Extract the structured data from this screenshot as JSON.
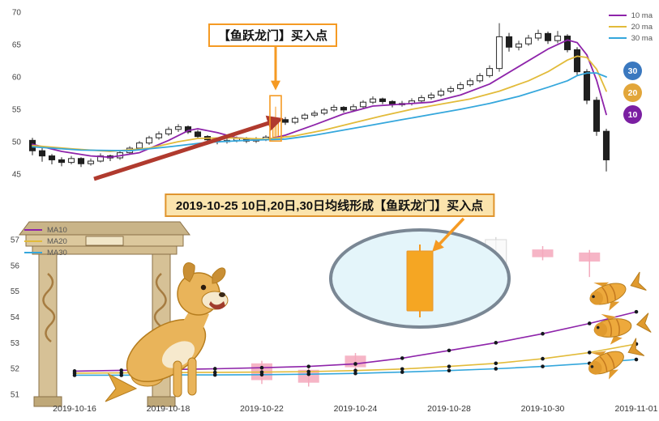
{
  "banner": {
    "text": "2019-10-25 10日,20日,30日均线形成【鱼跃龙门】买入点"
  },
  "top_chart": {
    "annotation": "【鱼跃龙门】买入点",
    "y_ticks": [
      45,
      50,
      55,
      60,
      65,
      70
    ],
    "badges": [
      {
        "label": "30",
        "color": "#3a78bf"
      },
      {
        "label": "20",
        "color": "#e2a63a"
      },
      {
        "label": "10",
        "color": "#7b1fa2"
      }
    ]
  },
  "bottom_chart": {
    "y_ticks": [
      51,
      52,
      53,
      54,
      55,
      56,
      57
    ]
  },
  "chart_data": [
    {
      "type": "candlestick",
      "title": "",
      "ylim": [
        44.5,
        70
      ],
      "y_ticks": [
        45,
        50,
        55,
        60,
        65,
        70
      ],
      "legend_position": "top-right",
      "annotation": "【鱼跃龙门】买入点",
      "buy_candle_index": 25,
      "candles": [
        [
          50.2,
          50.6,
          47.9,
          48.6
        ],
        [
          48.6,
          49.0,
          46.9,
          47.8
        ],
        [
          47.8,
          48.1,
          46.5,
          47.2
        ],
        [
          47.2,
          47.6,
          46.2,
          46.8
        ],
        [
          46.8,
          47.8,
          46.5,
          47.4
        ],
        [
          47.4,
          47.6,
          46.1,
          46.6
        ],
        [
          46.6,
          47.4,
          46.3,
          47.0
        ],
        [
          47.0,
          48.2,
          46.8,
          47.8
        ],
        [
          47.8,
          48.0,
          47.0,
          47.5
        ],
        [
          47.5,
          48.6,
          47.2,
          48.3
        ],
        [
          48.3,
          49.3,
          48.0,
          49.0
        ],
        [
          49.0,
          50.1,
          48.7,
          49.8
        ],
        [
          49.8,
          50.9,
          49.5,
          50.6
        ],
        [
          50.6,
          51.6,
          50.3,
          51.2
        ],
        [
          51.2,
          52.3,
          50.9,
          51.9
        ],
        [
          51.9,
          52.7,
          51.5,
          52.3
        ],
        [
          52.3,
          52.5,
          51.2,
          51.5
        ],
        [
          51.5,
          51.8,
          50.5,
          50.8
        ],
        [
          50.8,
          51.0,
          50.0,
          50.3
        ],
        [
          50.3,
          50.6,
          49.6,
          50.0
        ],
        [
          50.0,
          50.5,
          49.7,
          50.2
        ],
        [
          50.2,
          50.8,
          49.9,
          50.5
        ],
        [
          50.5,
          50.7,
          49.8,
          50.1
        ],
        [
          50.1,
          50.7,
          49.8,
          50.4
        ],
        [
          50.4,
          51.0,
          50.1,
          50.7
        ],
        [
          50.7,
          55.4,
          50.3,
          53.4
        ],
        [
          53.4,
          53.8,
          52.6,
          53.0
        ],
        [
          53.0,
          53.9,
          52.7,
          53.6
        ],
        [
          53.6,
          54.4,
          53.3,
          54.1
        ],
        [
          54.1,
          54.8,
          53.8,
          54.4
        ],
        [
          54.4,
          55.2,
          54.1,
          54.9
        ],
        [
          54.9,
          55.7,
          54.6,
          55.3
        ],
        [
          55.3,
          55.5,
          54.5,
          54.9
        ],
        [
          54.9,
          55.8,
          54.6,
          55.4
        ],
        [
          55.4,
          56.4,
          55.1,
          56.1
        ],
        [
          56.1,
          57.0,
          55.8,
          56.6
        ],
        [
          56.6,
          56.8,
          55.8,
          56.2
        ],
        [
          56.2,
          56.4,
          55.3,
          55.7
        ],
        [
          55.7,
          56.3,
          55.4,
          55.9
        ],
        [
          55.9,
          56.7,
          55.6,
          56.3
        ],
        [
          56.3,
          57.2,
          56.0,
          56.8
        ],
        [
          56.8,
          57.6,
          56.5,
          57.2
        ],
        [
          57.2,
          58.2,
          56.9,
          57.8
        ],
        [
          57.8,
          58.6,
          57.5,
          58.2
        ],
        [
          58.2,
          59.2,
          57.9,
          58.8
        ],
        [
          58.8,
          59.8,
          58.5,
          59.4
        ],
        [
          59.4,
          60.6,
          59.1,
          60.2
        ],
        [
          60.2,
          61.8,
          59.9,
          61.3
        ],
        [
          61.3,
          68.3,
          60.8,
          66.2
        ],
        [
          66.2,
          66.8,
          63.9,
          64.6
        ],
        [
          64.6,
          65.6,
          64.1,
          65.1
        ],
        [
          65.1,
          66.5,
          64.8,
          66.0
        ],
        [
          66.0,
          67.3,
          65.6,
          66.7
        ],
        [
          66.7,
          67.0,
          65.1,
          65.6
        ],
        [
          65.6,
          67.1,
          65.2,
          66.3
        ],
        [
          66.3,
          66.6,
          63.8,
          64.2
        ],
        [
          64.2,
          64.6,
          60.2,
          60.8
        ],
        [
          60.8,
          61.2,
          55.8,
          56.4
        ],
        [
          56.4,
          56.9,
          50.9,
          51.6
        ],
        [
          51.6,
          52.0,
          45.4,
          47.2
        ]
      ],
      "series": [
        {
          "name": "10 ma",
          "color": "#8e24aa",
          "points": [
            [
              0,
              49.6
            ],
            [
              3,
              48.5
            ],
            [
              6,
              47.8
            ],
            [
              8,
              47.6
            ],
            [
              11,
              48.3
            ],
            [
              14,
              50.2
            ],
            [
              16,
              51.7
            ],
            [
              17,
              52.0
            ],
            [
              19,
              51.4
            ],
            [
              21,
              50.6
            ],
            [
              24,
              50.3
            ],
            [
              26,
              51.0
            ],
            [
              29,
              52.6
            ],
            [
              32,
              54.3
            ],
            [
              35,
              55.5
            ],
            [
              38,
              55.8
            ],
            [
              41,
              56.1
            ],
            [
              44,
              57.2
            ],
            [
              47,
              58.9
            ],
            [
              50,
              61.6
            ],
            [
              53,
              64.3
            ],
            [
              55,
              65.7
            ],
            [
              56,
              65.3
            ],
            [
              57,
              63.4
            ],
            [
              58,
              59.5
            ],
            [
              59,
              54.2
            ]
          ]
        },
        {
          "name": "20 ma",
          "color": "#e2bb3a",
          "points": [
            [
              0,
              49.4
            ],
            [
              4,
              48.9
            ],
            [
              8,
              48.5
            ],
            [
              12,
              49.0
            ],
            [
              15,
              50.0
            ],
            [
              17,
              50.5
            ],
            [
              20,
              50.6
            ],
            [
              24,
              50.4
            ],
            [
              27,
              50.9
            ],
            [
              30,
              51.8
            ],
            [
              33,
              52.9
            ],
            [
              36,
              54.0
            ],
            [
              39,
              55.0
            ],
            [
              42,
              55.8
            ],
            [
              45,
              56.6
            ],
            [
              48,
              57.8
            ],
            [
              51,
              59.4
            ],
            [
              53,
              60.8
            ],
            [
              55,
              62.6
            ],
            [
              56,
              63.2
            ],
            [
              57,
              63.0
            ],
            [
              58,
              61.2
            ],
            [
              59,
              57.8
            ]
          ]
        },
        {
          "name": "30 ma",
          "color": "#35a7dc",
          "points": [
            [
              0,
              49.2
            ],
            [
              5,
              48.7
            ],
            [
              10,
              48.6
            ],
            [
              14,
              49.2
            ],
            [
              18,
              49.9
            ],
            [
              22,
              50.2
            ],
            [
              26,
              50.4
            ],
            [
              29,
              51.0
            ],
            [
              32,
              51.8
            ],
            [
              35,
              52.6
            ],
            [
              38,
              53.4
            ],
            [
              41,
              54.2
            ],
            [
              44,
              55.0
            ],
            [
              47,
              55.9
            ],
            [
              50,
              57.0
            ],
            [
              53,
              58.4
            ],
            [
              55,
              59.4
            ],
            [
              56,
              60.2
            ],
            [
              57,
              60.6
            ],
            [
              58,
              60.6
            ],
            [
              59,
              60.0
            ]
          ]
        }
      ]
    },
    {
      "type": "line+candlestick",
      "n_points": 13,
      "x_tick_indices": [
        0,
        2,
        4,
        6,
        8,
        10,
        12
      ],
      "x_tick_labels": [
        "2019-10-16",
        "2019-10-18",
        "2019-10-22",
        "2019-10-24",
        "2019-10-28",
        "2019-10-30",
        "2019-11-01"
      ],
      "ylim": [
        50.9,
        57.3
      ],
      "y_ticks": [
        51,
        52,
        53,
        54,
        55,
        56,
        57
      ],
      "legend_position": "top-left",
      "series": [
        {
          "name": "MA10",
          "color": "#8e24aa",
          "values": [
            51.9,
            51.93,
            51.96,
            51.99,
            52.03,
            52.08,
            52.18,
            52.4,
            52.7,
            53.0,
            53.35,
            53.75,
            54.2
          ]
        },
        {
          "name": "MA20",
          "color": "#e2bb3a",
          "values": [
            51.82,
            51.83,
            51.84,
            51.85,
            51.86,
            51.88,
            51.92,
            51.98,
            52.08,
            52.2,
            52.38,
            52.62,
            52.95
          ]
        },
        {
          "name": "MA30",
          "color": "#35a7dc",
          "values": [
            51.74,
            51.74,
            51.75,
            51.75,
            51.76,
            51.78,
            51.81,
            51.86,
            51.92,
            51.99,
            52.08,
            52.2,
            52.35
          ]
        }
      ],
      "candles": [
        {
          "i": 4,
          "top": 52.2,
          "bottom": 51.55,
          "high": 52.3,
          "low": 51.4,
          "style": "pink"
        },
        {
          "i": 5,
          "top": 51.95,
          "bottom": 51.45,
          "high": 52.05,
          "low": 51.3,
          "style": "pink"
        },
        {
          "i": 6,
          "top": 52.5,
          "bottom": 52.05,
          "high": 52.6,
          "low": 51.9,
          "style": "pink"
        },
        {
          "i": 8,
          "top": 56.7,
          "bottom": 56.2,
          "high": 56.85,
          "low": 55.9,
          "style": "pink"
        },
        {
          "i": 9,
          "top": 57.0,
          "bottom": 56.0,
          "high": 57.1,
          "low": 55.9,
          "style": "hollow"
        },
        {
          "i": 10,
          "top": 56.62,
          "bottom": 56.32,
          "high": 56.75,
          "low": 56.2,
          "style": "pink"
        },
        {
          "i": 11,
          "top": 56.5,
          "bottom": 56.15,
          "high": 56.6,
          "low": 55.55,
          "style": "pink"
        }
      ],
      "magnifier": {
        "candle_index": 7
      }
    }
  ]
}
